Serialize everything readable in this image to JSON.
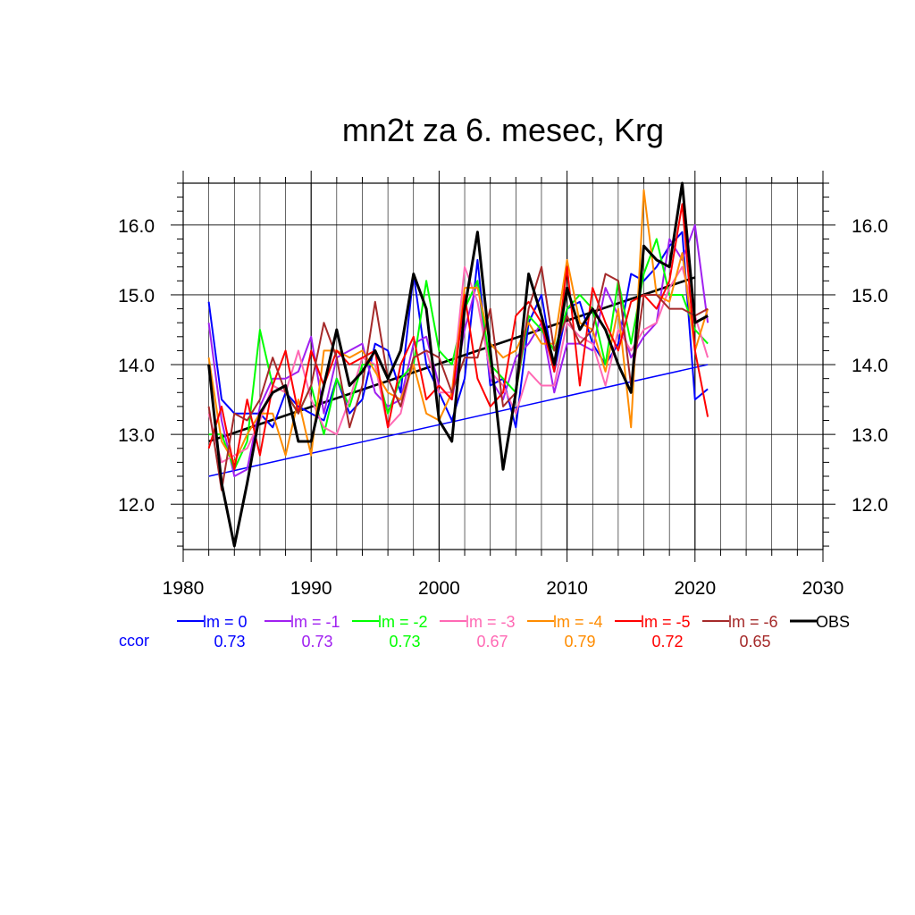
{
  "chart_data": {
    "type": "line",
    "title": "mn2t za 6. mesec, Krg",
    "xlim": [
      1980,
      2030
    ],
    "ylim": [
      11.35,
      16.6
    ],
    "x_ticks": [
      "1980",
      "1990",
      "2000",
      "2010",
      "2020",
      "2030"
    ],
    "y_ticks": [
      "12.0",
      "13.0",
      "14.0",
      "15.0",
      "16.0"
    ],
    "grid": true,
    "ccor_label": "ccor",
    "x": [
      1982,
      1983,
      1984,
      1985,
      1986,
      1987,
      1988,
      1989,
      1990,
      1991,
      1992,
      1993,
      1994,
      1995,
      1996,
      1997,
      1998,
      1999,
      2000,
      2001,
      2002,
      2003,
      2004,
      2005,
      2006,
      2007,
      2008,
      2009,
      2010,
      2011,
      2012,
      2013,
      2014,
      2015,
      2016,
      2017,
      2018,
      2019,
      2020,
      2021
    ],
    "series": [
      {
        "name": "lm = 0",
        "color": "#0000ff",
        "ccor": "0.73",
        "values": [
          14.9,
          13.5,
          13.3,
          13.3,
          13.3,
          13.1,
          13.6,
          13.4,
          13.3,
          13.2,
          13.8,
          13.3,
          13.5,
          14.3,
          14.2,
          13.6,
          15.3,
          14.0,
          13.6,
          13.2,
          13.8,
          15.5,
          13.7,
          13.8,
          13.1,
          14.6,
          15.0,
          13.9,
          14.8,
          14.9,
          14.3,
          14.0,
          14.3,
          15.3,
          15.2,
          15.4,
          15.7,
          15.9,
          13.5,
          13.65
        ]
      },
      {
        "name": "lm = -1",
        "color": "#a020f0",
        "ccor": "0.73",
        "values": [
          14.6,
          13.2,
          12.4,
          12.5,
          13.4,
          13.8,
          13.8,
          13.9,
          14.4,
          13.3,
          14.1,
          14.2,
          14.3,
          13.6,
          13.4,
          13.5,
          14.3,
          14.4,
          13.7,
          13.5,
          14.5,
          15.2,
          13.8,
          13.5,
          14.1,
          14.3,
          14.6,
          13.6,
          14.3,
          14.3,
          14.2,
          15.1,
          14.7,
          14.1,
          14.4,
          14.6,
          15.8,
          15.5,
          16.0,
          14.6
        ]
      },
      {
        "name": "lm = -2",
        "color": "#00ff00",
        "ccor": "0.73",
        "values": [
          13.0,
          13.0,
          12.5,
          12.9,
          14.5,
          13.7,
          13.6,
          13.3,
          13.7,
          13.0,
          13.8,
          13.4,
          14.0,
          14.0,
          13.3,
          13.8,
          14.0,
          15.2,
          14.2,
          14.0,
          14.8,
          15.2,
          14.0,
          13.8,
          13.6,
          14.7,
          14.5,
          14.2,
          14.8,
          15.0,
          14.8,
          14.0,
          15.2,
          14.3,
          15.3,
          15.8,
          15.0,
          15.0,
          14.5,
          14.3
        ]
      },
      {
        "name": "lm = -3",
        "color": "#ff69b4",
        "ccor": "0.67",
        "values": [
          13.3,
          12.6,
          12.7,
          12.8,
          13.2,
          13.7,
          13.6,
          14.2,
          13.5,
          13.1,
          13.0,
          13.5,
          14.1,
          14.0,
          13.1,
          13.3,
          14.1,
          14.2,
          13.6,
          13.6,
          15.4,
          14.9,
          13.9,
          13.7,
          13.3,
          13.9,
          13.7,
          13.7,
          14.6,
          14.4,
          14.3,
          13.7,
          14.5,
          14.2,
          14.5,
          14.6,
          15.1,
          15.4,
          14.7,
          14.1
        ]
      },
      {
        "name": "lm = -4",
        "color": "#ff8c00",
        "ccor": "0.79",
        "values": [
          14.1,
          12.9,
          12.6,
          13.0,
          13.3,
          13.3,
          12.7,
          13.5,
          12.7,
          14.2,
          14.2,
          14.1,
          14.2,
          13.9,
          13.6,
          13.5,
          14.0,
          13.3,
          13.2,
          13.6,
          15.1,
          15.1,
          14.3,
          14.1,
          14.2,
          14.6,
          14.3,
          14.3,
          15.5,
          14.6,
          14.5,
          13.9,
          14.8,
          13.1,
          16.5,
          15.0,
          14.9,
          15.6,
          14.2,
          14.8
        ]
      },
      {
        "name": "lm = -5",
        "color": "#ff0000",
        "ccor": "0.72",
        "values": [
          12.8,
          13.4,
          12.5,
          13.5,
          12.7,
          13.7,
          14.2,
          13.3,
          14.2,
          13.7,
          14.2,
          14.0,
          14.1,
          14.2,
          13.1,
          14.0,
          14.4,
          13.5,
          13.7,
          13.5,
          15.0,
          13.8,
          13.4,
          13.6,
          14.7,
          14.9,
          14.6,
          13.9,
          15.4,
          13.7,
          15.1,
          14.6,
          14.2,
          14.9,
          15.0,
          14.8,
          15.2,
          16.3,
          14.2,
          13.25
        ]
      },
      {
        "name": "lm = -6",
        "color": "#a52a2a",
        "ccor": "0.65",
        "values": [
          13.4,
          12.2,
          13.3,
          13.2,
          13.5,
          14.1,
          13.6,
          13.3,
          13.7,
          14.6,
          14.1,
          13.1,
          13.7,
          14.9,
          13.8,
          13.4,
          14.1,
          14.2,
          14.1,
          13.6,
          14.1,
          14.1,
          14.8,
          13.4,
          13.6,
          14.8,
          15.4,
          14.2,
          14.7,
          14.3,
          14.5,
          15.3,
          15.2,
          13.7,
          15.0,
          15.0,
          14.8,
          14.8,
          14.7,
          14.8
        ]
      },
      {
        "name": "OBS",
        "color": "#000000",
        "ccor": "",
        "values": [
          14.0,
          12.3,
          11.4,
          12.3,
          13.3,
          13.6,
          13.7,
          12.9,
          12.9,
          13.7,
          14.5,
          13.7,
          13.9,
          14.2,
          13.8,
          14.2,
          15.3,
          14.8,
          13.2,
          12.9,
          14.8,
          15.9,
          14.2,
          12.5,
          13.6,
          15.3,
          14.7,
          14.0,
          15.1,
          14.5,
          14.8,
          14.5,
          14.0,
          13.6,
          15.7,
          15.5,
          15.4,
          16.6,
          14.6,
          14.7
        ]
      }
    ],
    "trends": [
      {
        "color": "#0000ff",
        "x": [
          1982,
          2021
        ],
        "y": [
          12.4,
          14.0
        ]
      },
      {
        "color": "#000000",
        "x": [
          1982,
          2020
        ],
        "y": [
          12.9,
          15.25
        ]
      }
    ]
  }
}
